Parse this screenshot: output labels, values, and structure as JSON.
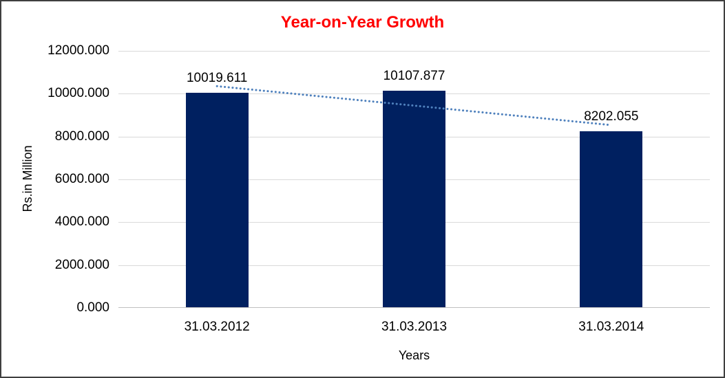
{
  "chart_data": {
    "type": "bar",
    "title": "Year-on-Year Growth",
    "xlabel": "Years",
    "ylabel": "Rs.in Million",
    "categories": [
      "31.03.2012",
      "31.03.2013",
      "31.03.2014"
    ],
    "values": [
      10019.611,
      10107.877,
      8202.055
    ],
    "value_labels": [
      "10019.611",
      "10107.877",
      "8202.055"
    ],
    "y_tick_labels": [
      "12000.000",
      "10000.000",
      "8000.000",
      "6000.000",
      "4000.000",
      "2000.000",
      "0.000"
    ],
    "ylim": [
      0,
      12000
    ],
    "grid": true,
    "legend": "none",
    "trendline": {
      "type": "linear",
      "style": "dotted"
    },
    "colors": {
      "bar": "#002060",
      "title": "#ff0000",
      "gridline": "#d9d9d9",
      "axis_line": "#bfbfbf",
      "trendline": "#4f81bd",
      "text": "#000000",
      "frame_border": "#3f3f3f"
    }
  }
}
